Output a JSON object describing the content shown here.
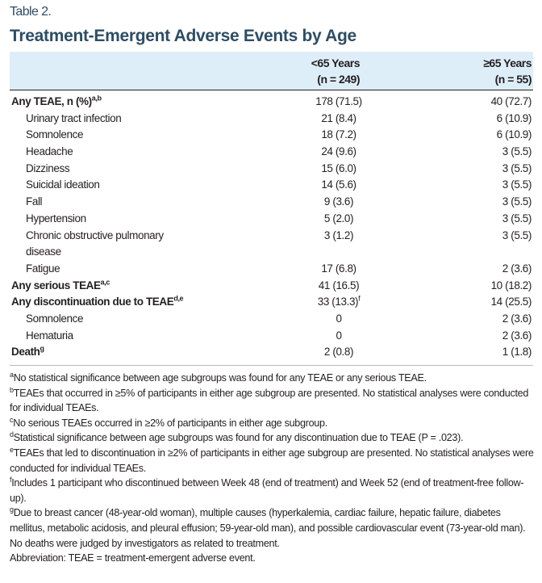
{
  "table_label": "Table 2.",
  "title": "Treatment-Emergent Adverse Events by Age",
  "columns": [
    {
      "line1": "<65 Years",
      "line2": "(n = 249)"
    },
    {
      "line1": "≥65 Years",
      "line2": "(n = 55)"
    }
  ],
  "rows": [
    {
      "name": "Any TEAE, n (%)",
      "sup": "a,b",
      "v1": "178 (71.5)",
      "v2": "40 (72.7)",
      "bold": true
    },
    {
      "name": "Urinary tract infection",
      "v1": "21 (8.4)",
      "v2": "6 (10.9)"
    },
    {
      "name": "Somnolence",
      "v1": "18 (7.2)",
      "v2": "6 (10.9)"
    },
    {
      "name": "Headache",
      "v1": "24 (9.6)",
      "v2": "3 (5.5)"
    },
    {
      "name": "Dizziness",
      "v1": "15 (6.0)",
      "v2": "3 (5.5)"
    },
    {
      "name": "Suicidal ideation",
      "v1": "14 (5.6)",
      "v2": "3 (5.5)"
    },
    {
      "name": "Fall",
      "v1": "9 (3.6)",
      "v2": "3 (5.5)"
    },
    {
      "name": "Hypertension",
      "v1": "5 (2.0)",
      "v2": "3 (5.5)"
    },
    {
      "name": "Chronic obstructive pulmonary disease",
      "v1": "3 (1.2)",
      "v2": "3 (5.5)",
      "tall": true
    },
    {
      "name": "Fatigue",
      "v1": "17 (6.8)",
      "v2": "2 (3.6)"
    },
    {
      "name": "Any serious TEAE",
      "sup": "a,c",
      "v1": "41 (16.5)",
      "v2": "10 (18.2)",
      "bold": true
    },
    {
      "name": "Any discontinuation due to TEAE",
      "sup": "d,e",
      "v1": "33 (13.3)",
      "v1sup": "f",
      "v2": "14 (25.5)",
      "bold": true
    },
    {
      "name": "Somnolence",
      "v1": "0",
      "v2": "2 (3.6)"
    },
    {
      "name": "Hematuria",
      "v1": "0",
      "v2": "2 (3.6)"
    },
    {
      "name": "Death",
      "sup": "g",
      "v1": "2 (0.8)",
      "v2": "1 (1.8)",
      "bold": true
    }
  ],
  "footnotes": [
    {
      "mark": "a",
      "text": "No statistical significance between age subgroups was found for any TEAE or any serious TEAE."
    },
    {
      "mark": "b",
      "text": "TEAEs that occurred in ≥5% of participants in either age subgroup are presented. No statistical analyses were conducted for individual TEAEs."
    },
    {
      "mark": "c",
      "text": "No serious TEAEs occurred in ≥2% of participants in either age subgroup."
    },
    {
      "mark": "d",
      "text": "Statistical significance between age subgroups was found for any discontinuation due to TEAE (P = .023)."
    },
    {
      "mark": "e",
      "text": "TEAEs that led to discontinuation in ≥2% of participants in either age subgroup are presented. No statistical analyses were conducted for individual TEAEs."
    },
    {
      "mark": "f",
      "text": "Includes 1 participant who discontinued between Week 48 (end of treatment) and Week 52 (end of treatment-free follow-up)."
    },
    {
      "mark": "g",
      "text": "Due to breast cancer (48-year-old woman), multiple causes (hyperkalemia, cardiac failure, hepatic failure, diabetes mellitus, metabolic acidosis, and pleural effusion; 59-year-old man), and possible cardiovascular event (73-year-old man). No deaths were judged by investigators as related to treatment."
    }
  ],
  "abbreviation": "Abbreviation: TEAE = treatment-emergent adverse event."
}
